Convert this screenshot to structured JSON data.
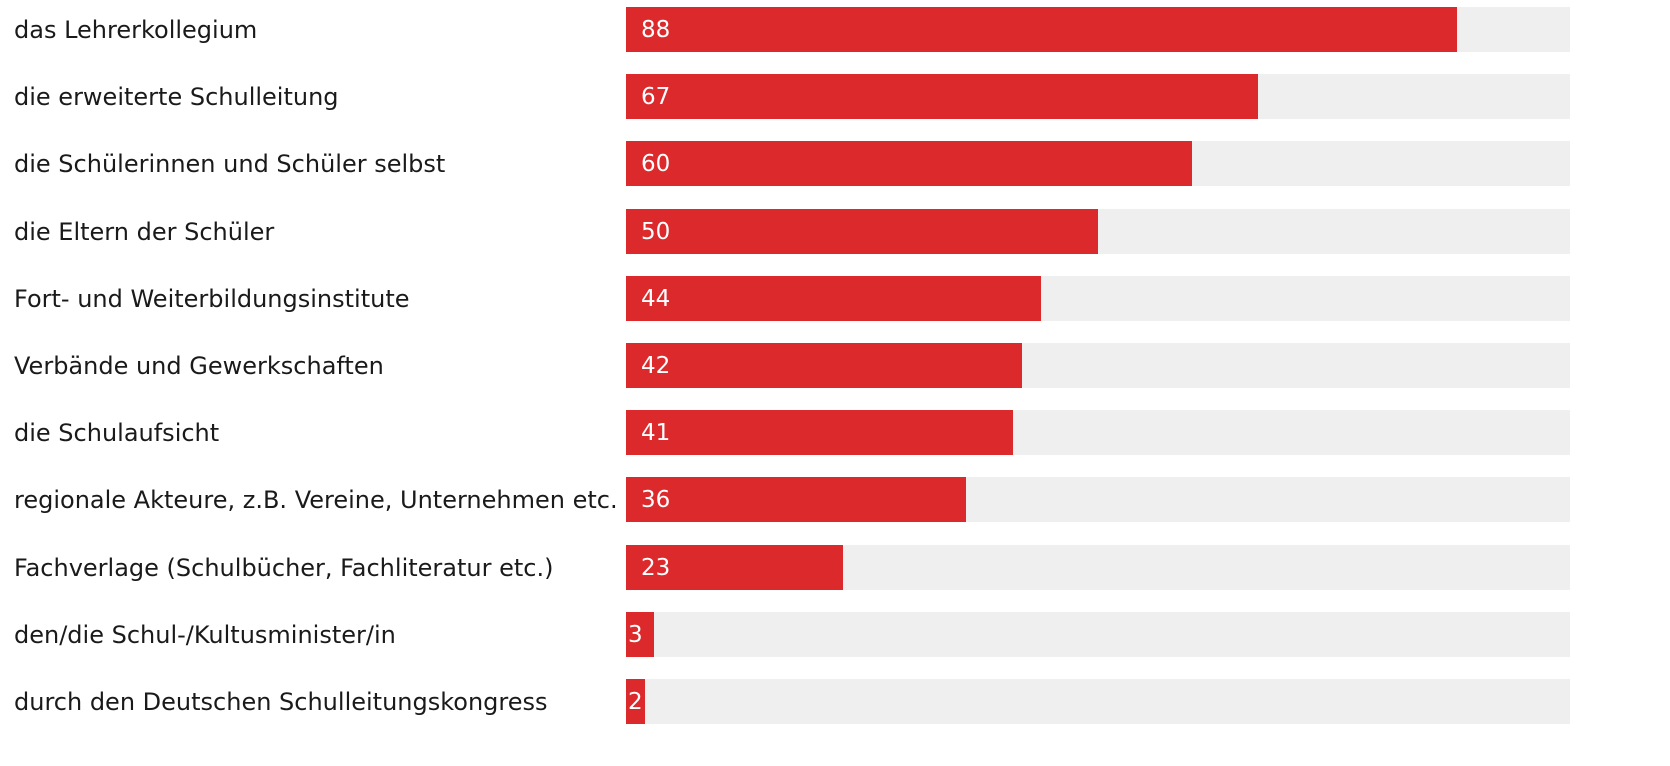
{
  "chart_data": {
    "type": "bar",
    "orientation": "horizontal",
    "categories": [
      "das Lehrerkollegium",
      "die erweiterte Schulleitung",
      "die Schülerinnen und Schüler selbst",
      "die Eltern der Schüler",
      "Fort- und Weiterbildungsinstitute",
      "Verbände und Gewerkschaften",
      "die Schulaufsicht",
      "regionale Akteure, z.B. Vereine, Unternehmen etc.",
      "Fachverlage (Schulbücher, Fachliteratur etc.)",
      "den/die Schul-/Kultusminister/in",
      "durch den Deutschen Schulleitungskongress"
    ],
    "values": [
      88,
      67,
      60,
      50,
      44,
      42,
      41,
      36,
      23,
      3,
      2
    ],
    "xlim": [
      0,
      100
    ],
    "grid": false,
    "legend": "none",
    "colors": {
      "bar": "#dc292c",
      "track": "#efefef",
      "label": "#1a1a1a",
      "value_text": "#ffffff"
    }
  }
}
